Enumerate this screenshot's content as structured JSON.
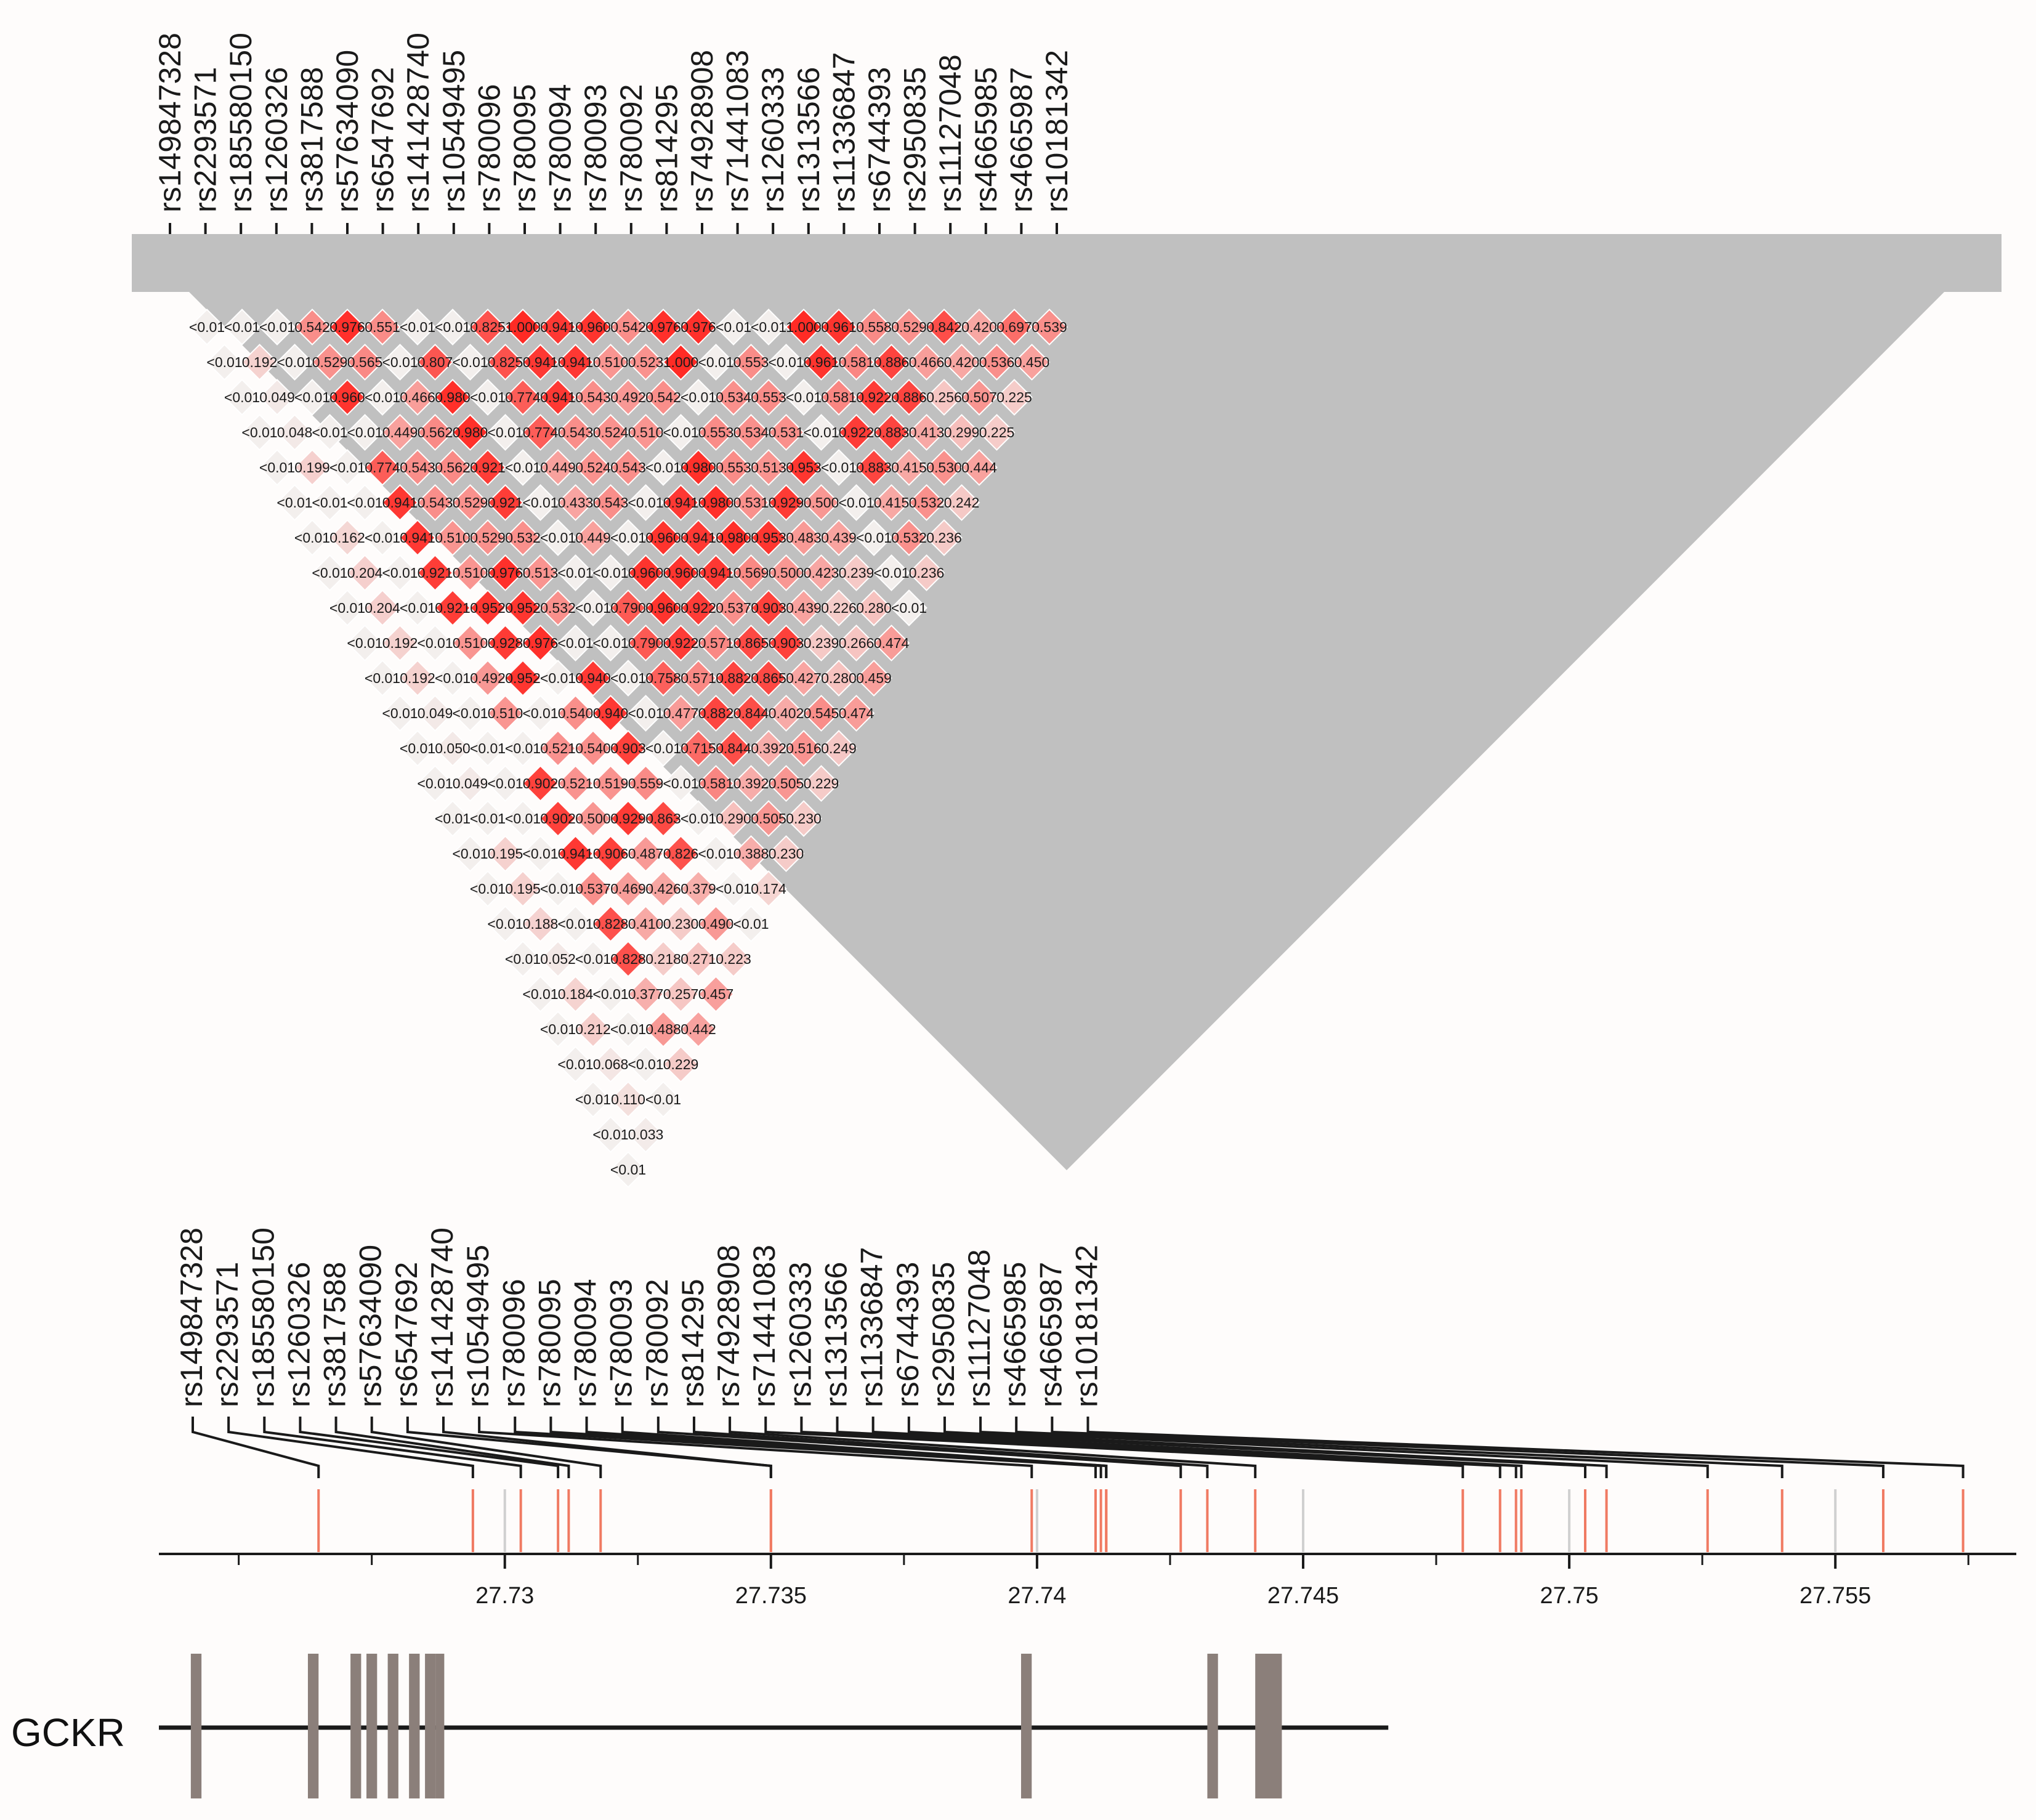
{
  "chart_data": {
    "type": "heatmap",
    "title": "",
    "snps": [
      "rs149847328",
      "rs2293571",
      "rs185580150",
      "rs1260326",
      "rs3817588",
      "rs57634090",
      "rs6547692",
      "rs141428740",
      "rs10549495",
      "rs780096",
      "rs780095",
      "rs780094",
      "rs780093",
      "rs780092",
      "rs814295",
      "rs74928908",
      "rs71441083",
      "rs1260333",
      "rs1313566",
      "rs11336847",
      "rs6744393",
      "rs2950835",
      "rs11127048",
      "rs4665985",
      "rs4665987",
      "rs10181342"
    ],
    "ld_rows": [
      [
        "<0.01",
        "<0.01",
        "<0.01",
        "0.542",
        "0.976",
        "0.551",
        "<0.01",
        "<0.01",
        "0.825",
        "1.000",
        "0.941",
        "0.960",
        "0.542",
        "0.976",
        "0.976",
        "<0.01",
        "<0.01",
        "1.000",
        "0.961",
        "0.558",
        "0.529",
        "0.842",
        "0.420",
        "0.697",
        "0.539"
      ],
      [
        "<0.01",
        "0.192",
        "<0.01",
        "0.529",
        "0.565",
        "<0.01",
        "0.807",
        "<0.01",
        "0.825",
        "0.941",
        "0.941",
        "0.510",
        "0.523",
        "1.000",
        "<0.01",
        "0.553",
        "<0.01",
        "0.961",
        "0.581",
        "0.886",
        "0.466",
        "0.420",
        "0.536",
        "0.450"
      ],
      [
        "<0.01",
        "0.049",
        "<0.01",
        "0.960",
        "<0.01",
        "0.466",
        "0.980",
        "<0.01",
        "0.774",
        "0.941",
        "0.543",
        "0.492",
        "0.542",
        "<0.01",
        "0.534",
        "0.553",
        "<0.01",
        "0.581",
        "0.922",
        "0.886",
        "0.256",
        "0.507",
        "0.225"
      ],
      [
        "<0.01",
        "0.048",
        "<0.01",
        "<0.01",
        "0.449",
        "0.562",
        "0.980",
        "<0.01",
        "0.774",
        "0.543",
        "0.524",
        "0.510",
        "<0.01",
        "0.553",
        "0.534",
        "0.531",
        "<0.01",
        "0.922",
        "0.883",
        "0.413",
        "0.299",
        "0.225"
      ],
      [
        "<0.01",
        "0.199",
        "<0.01",
        "0.774",
        "0.543",
        "0.562",
        "0.921",
        "<0.01",
        "0.449",
        "0.524",
        "0.543",
        "<0.01",
        "0.980",
        "0.553",
        "0.513",
        "0.953",
        "<0.01",
        "0.883",
        "0.415",
        "0.530",
        "0.444"
      ],
      [
        "<0.01",
        "<0.01",
        "<0.01",
        "0.941",
        "0.543",
        "0.529",
        "0.921",
        "<0.01",
        "0.433",
        "0.543",
        "<0.01",
        "0.941",
        "0.980",
        "0.531",
        "0.929",
        "0.500",
        "<0.01",
        "0.415",
        "0.532",
        "0.242"
      ],
      [
        "<0.01",
        "0.162",
        "<0.01",
        "0.941",
        "0.510",
        "0.529",
        "0.532",
        "<0.01",
        "0.449",
        "<0.01",
        "0.960",
        "0.941",
        "0.980",
        "0.953",
        "0.483",
        "0.439",
        "<0.01",
        "0.532",
        "0.236"
      ],
      [
        "<0.01",
        "0.204",
        "<0.01",
        "0.921",
        "0.510",
        "0.976",
        "0.513",
        "<0.01",
        "<0.01",
        "0.960",
        "0.960",
        "0.941",
        "0.569",
        "0.500",
        "0.423",
        "0.239",
        "<0.01",
        "0.236"
      ],
      [
        "<0.01",
        "0.204",
        "<0.01",
        "0.921",
        "0.952",
        "0.952",
        "0.532",
        "<0.01",
        "0.790",
        "0.960",
        "0.922",
        "0.537",
        "0.903",
        "0.439",
        "0.226",
        "0.280",
        "<0.01"
      ],
      [
        "<0.01",
        "0.192",
        "<0.01",
        "0.510",
        "0.928",
        "0.976",
        "<0.01",
        "<0.01",
        "0.790",
        "0.922",
        "0.571",
        "0.865",
        "0.903",
        "0.239",
        "0.266",
        "0.474"
      ],
      [
        "<0.01",
        "0.192",
        "<0.01",
        "0.492",
        "0.952",
        "<0.01",
        "0.940",
        "<0.01",
        "0.758",
        "0.571",
        "0.882",
        "0.865",
        "0.427",
        "0.280",
        "0.459"
      ],
      [
        "<0.01",
        "0.049",
        "<0.01",
        "0.510",
        "<0.01",
        "0.540",
        "0.940",
        "<0.01",
        "0.477",
        "0.882",
        "0.844",
        "0.402",
        "0.545",
        "0.474"
      ],
      [
        "<0.01",
        "0.050",
        "<0.01",
        "<0.01",
        "0.521",
        "0.540",
        "0.903",
        "<0.01",
        "0.715",
        "0.844",
        "0.392",
        "0.516",
        "0.249"
      ],
      [
        "<0.01",
        "0.049",
        "<0.01",
        "0.902",
        "0.521",
        "0.519",
        "0.559",
        "<0.01",
        "0.581",
        "0.392",
        "0.505",
        "0.229"
      ],
      [
        "<0.01",
        "<0.01",
        "<0.01",
        "0.902",
        "0.500",
        "0.929",
        "0.863",
        "<0.01",
        "0.290",
        "0.505",
        "0.230"
      ],
      [
        "<0.01",
        "0.195",
        "<0.01",
        "0.941",
        "0.906",
        "0.487",
        "0.826",
        "<0.01",
        "0.388",
        "0.230"
      ],
      [
        "<0.01",
        "0.195",
        "<0.01",
        "0.537",
        "0.469",
        "0.426",
        "0.379",
        "<0.01",
        "0.174"
      ],
      [
        "<0.01",
        "0.188",
        "<0.01",
        "0.828",
        "0.410",
        "0.230",
        "0.490",
        "<0.01"
      ],
      [
        "<0.01",
        "0.052",
        "<0.01",
        "0.828",
        "0.218",
        "0.271",
        "0.223"
      ],
      [
        "<0.01",
        "0.184",
        "<0.01",
        "0.377",
        "0.257",
        "0.457"
      ],
      [
        "<0.01",
        "0.212",
        "<0.01",
        "0.488",
        "0.442"
      ],
      [
        "<0.01",
        "0.068",
        "<0.01",
        "0.229"
      ],
      [
        "<0.01",
        "0.110",
        "<0.01"
      ],
      [
        "<0.01",
        "0.033"
      ],
      [
        "<0.01"
      ]
    ],
    "snp_positions_mb": [
      27.7265,
      27.7294,
      27.7303,
      27.731,
      27.7312,
      27.7318,
      27.735,
      27.735,
      27.7399,
      27.7411,
      27.7412,
      27.7413,
      27.7413,
      27.7427,
      27.7432,
      27.7441,
      27.748,
      27.7487,
      27.749,
      27.7491,
      27.7503,
      27.7507,
      27.7526,
      27.754,
      27.7559,
      27.7574
    ],
    "non_target_positions_mb": [
      27.73,
      27.74,
      27.745,
      27.75,
      27.755
    ],
    "x_axis": {
      "min": 27.7235,
      "max": 27.7584,
      "major_ticks": [
        27.73,
        27.735,
        27.74,
        27.745,
        27.75,
        27.755
      ],
      "tick_labels": [
        "27.73",
        "27.735",
        "27.74",
        "27.745",
        "27.75",
        "27.755"
      ],
      "minor_step": 0.0025
    },
    "gene": {
      "name": "GCKR",
      "start_mb": 27.7235,
      "end_mb": 27.7466,
      "exons_mb": [
        {
          "start": 27.7241,
          "end": 27.7243
        },
        {
          "start": 27.7263,
          "end": 27.7265
        },
        {
          "start": 27.7271,
          "end": 27.7273
        },
        {
          "start": 27.7274,
          "end": 27.7276
        },
        {
          "start": 27.7278,
          "end": 27.728
        },
        {
          "start": 27.7282,
          "end": 27.7284
        },
        {
          "start": 27.7285,
          "end": 27.7287
        },
        {
          "start": 27.7287,
          "end": 27.7288
        },
        {
          "start": 27.7397,
          "end": 27.7399
        },
        {
          "start": 27.7432,
          "end": 27.7434
        },
        {
          "start": 27.7441,
          "end": 27.7446
        }
      ]
    },
    "colors": {
      "low": "#f3efed",
      "high": "#ff2b25",
      "mark": "#f07a62",
      "mark_grey": "#d0d0d0",
      "exon": "#8b7f7a",
      "line": "#1a1a1a"
    }
  }
}
